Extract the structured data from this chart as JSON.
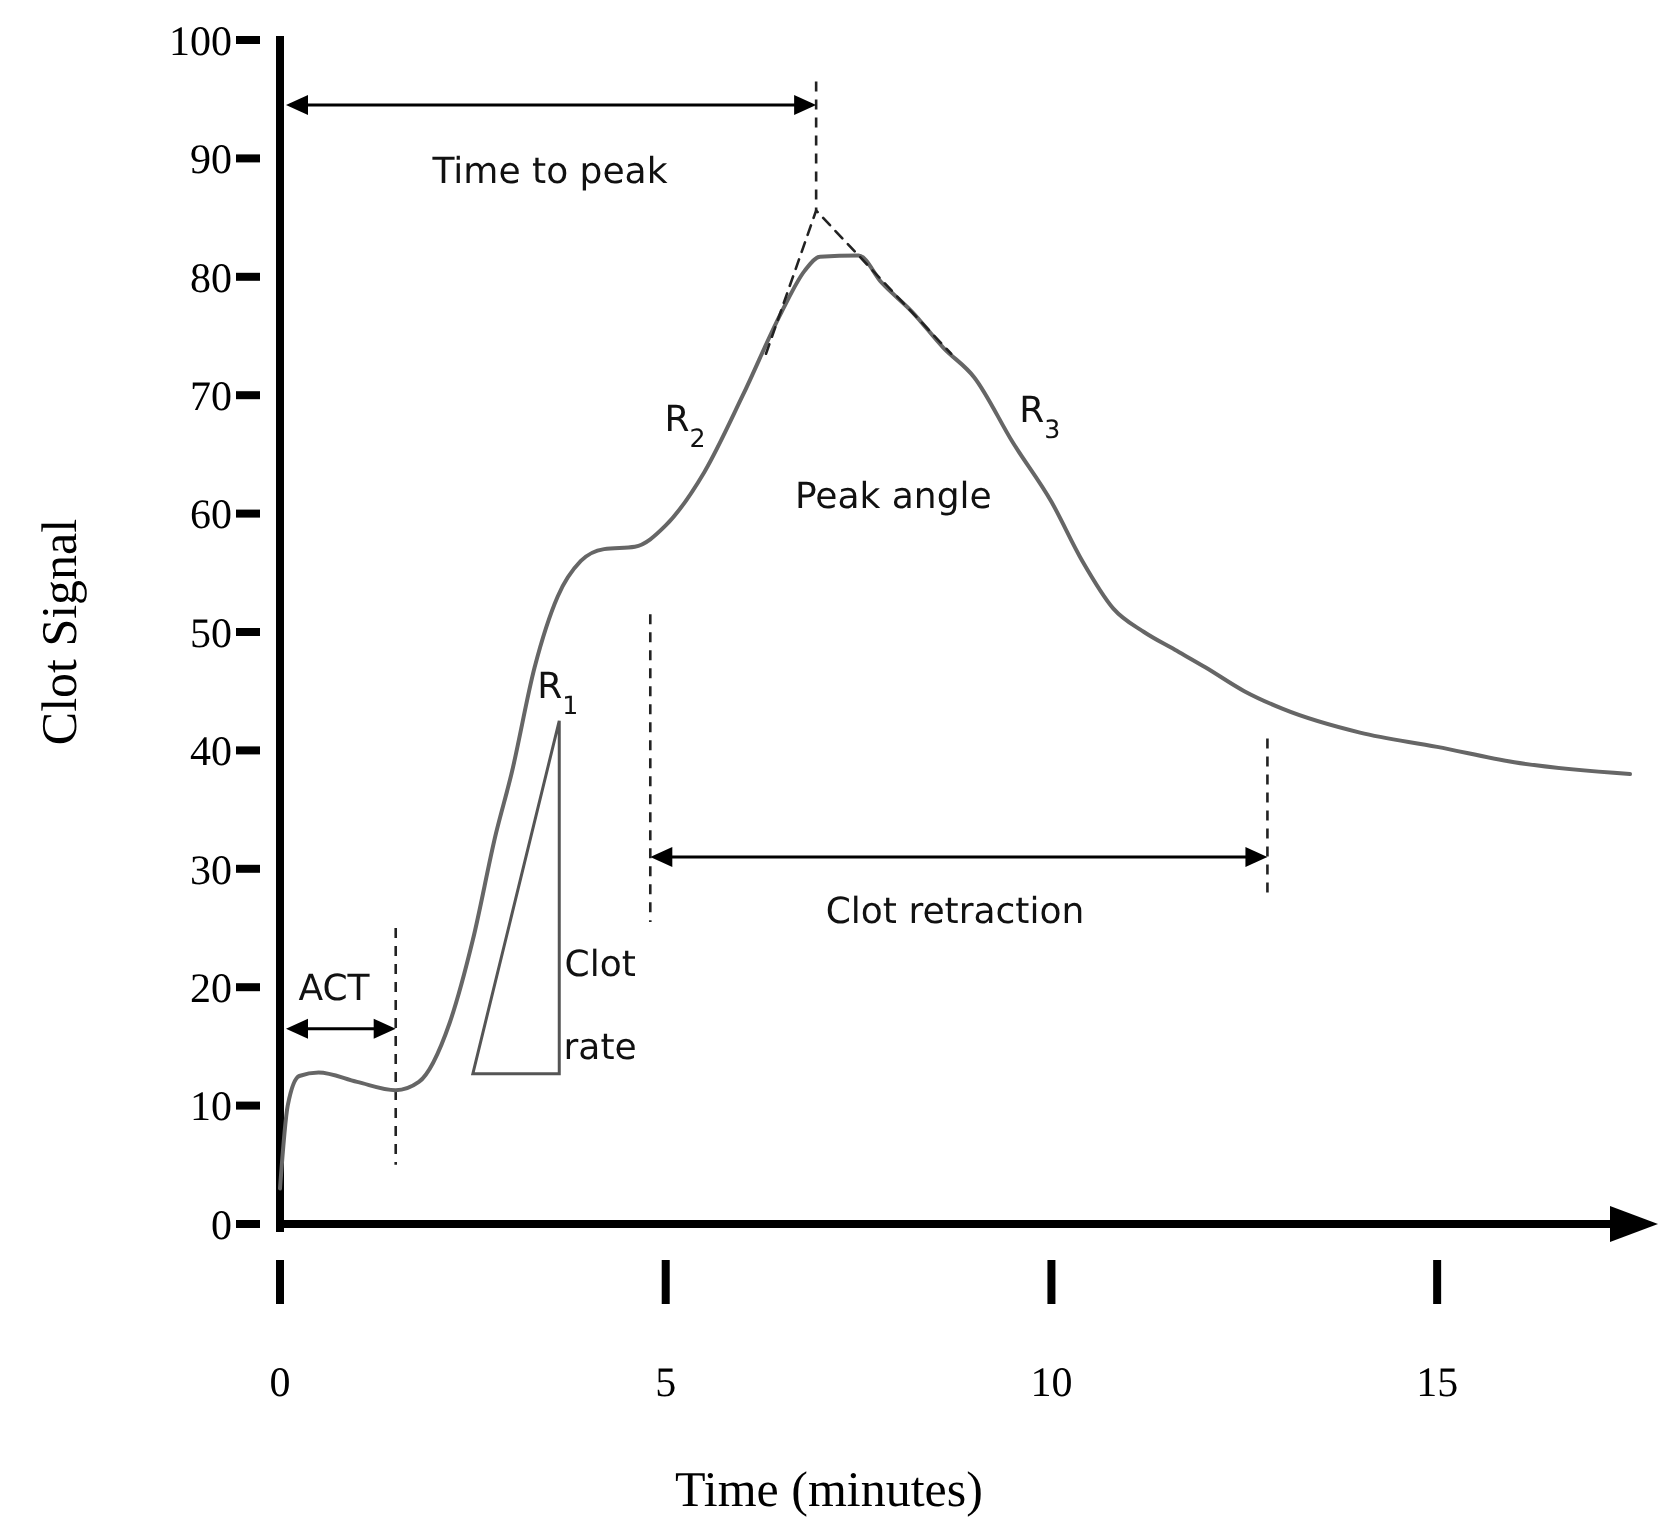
{
  "chart_data": {
    "type": "line",
    "xlabel": "Time (minutes)",
    "ylabel": "Clot Signal",
    "xlim": [
      0,
      17.5
    ],
    "ylim": [
      0,
      100
    ],
    "xticks": [
      0,
      5,
      10,
      15
    ],
    "yticks": [
      0,
      10,
      20,
      30,
      40,
      50,
      60,
      70,
      80,
      90,
      100
    ],
    "series": [
      {
        "color": "#666666",
        "line_style": "solid",
        "x": [
          0,
          0.1,
          0.25,
          0.5,
          1.0,
          1.5,
          1.8,
          2.2,
          2.5,
          2.8,
          3.0,
          3.3,
          3.6,
          3.9,
          4.2,
          4.6,
          5.0,
          5.5,
          6.0,
          6.5,
          6.8,
          7.0,
          7.5,
          7.8,
          8.2,
          8.6,
          9.0,
          9.5,
          10.0,
          10.4,
          10.8,
          11.2,
          11.6,
          12.0,
          12.5,
          13.0,
          14.0,
          15.0,
          16.0,
          17.5
        ],
        "values": [
          3,
          10,
          12.5,
          12.8,
          12,
          11.3,
          12,
          17,
          24,
          33,
          38,
          47,
          53,
          56,
          57,
          57.2,
          59,
          63.5,
          70,
          77,
          80.5,
          81.7,
          81.8,
          79.5,
          77,
          74,
          71.5,
          66,
          61,
          56,
          52,
          50,
          48.5,
          47,
          45,
          43.5,
          41.5,
          40.3,
          39,
          38
        ]
      },
      {
        "color": "#222222",
        "line_style": "dashed",
        "x": [
          6.3,
          6.95,
          8.7
        ],
        "values": [
          73.5,
          85.6,
          73.5
        ]
      }
    ],
    "ref_lines": [
      {
        "axis": "x",
        "value": 1.5,
        "color": "#222222",
        "line_style": "dashed"
      },
      {
        "axis": "x",
        "value": 4.8,
        "color": "#222222",
        "line_style": "dashed"
      },
      {
        "axis": "x",
        "value": 6.95,
        "color": "#222222",
        "line_style": "dashed"
      },
      {
        "axis": "x",
        "value": 12.8,
        "color": "#222222",
        "line_style": "dashed"
      }
    ],
    "annotations": [
      "Time to peak",
      "ACT",
      "R$_{1}$",
      "R$_{2}$",
      "R$_{3}$",
      "Peak angle",
      "Clot",
      "rate",
      "Clot retraction"
    ]
  }
}
